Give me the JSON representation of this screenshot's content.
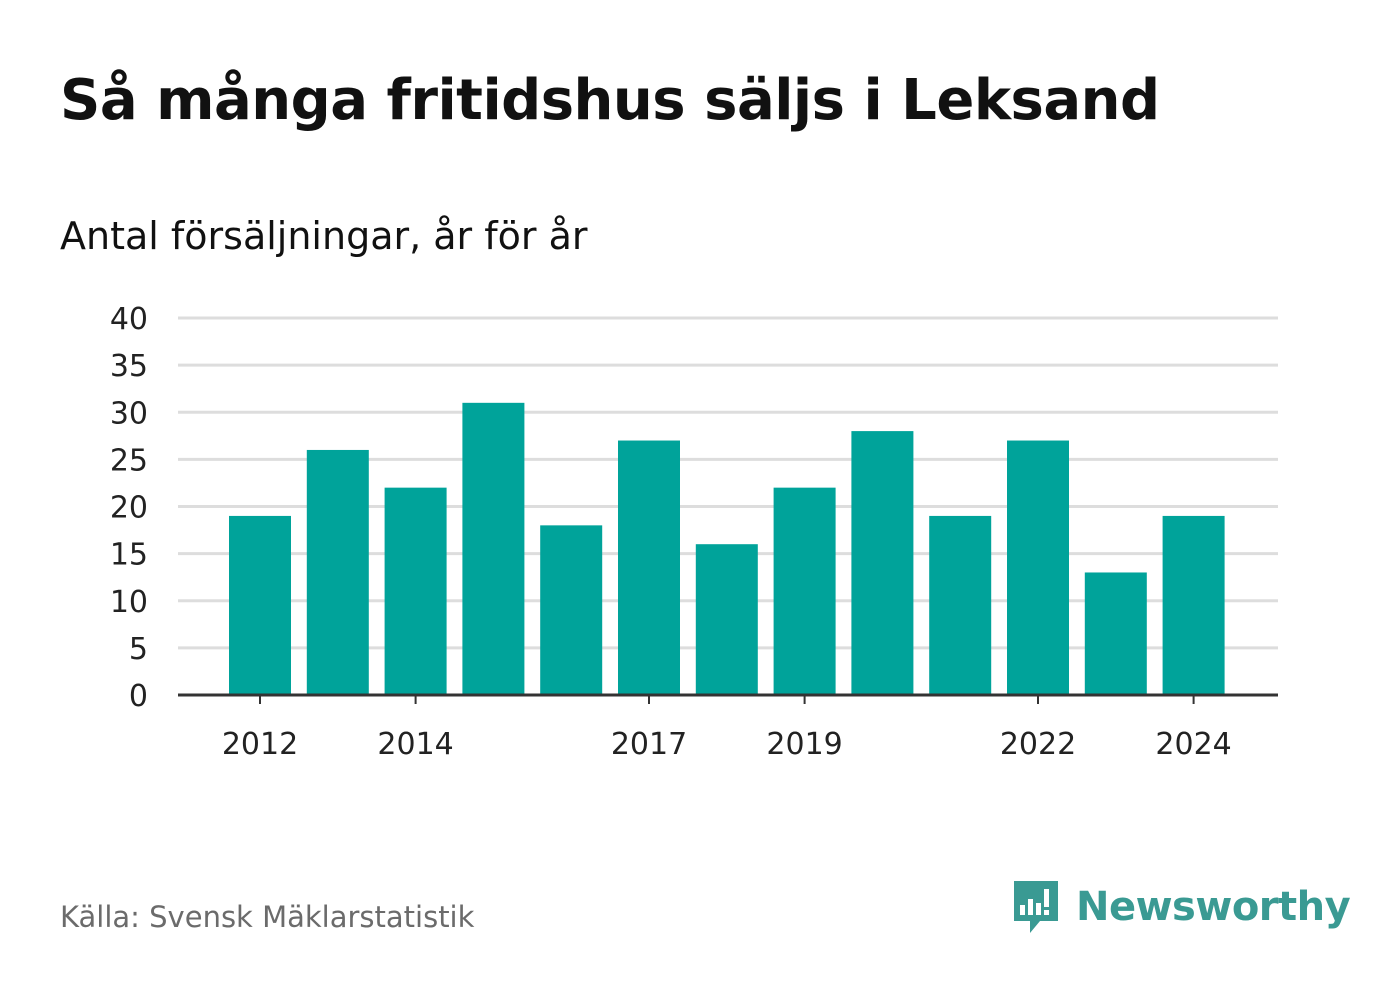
{
  "header": {
    "title": "Så många fritidshus säljs i Leksand",
    "subtitle": "Antal försäljningar, år för år"
  },
  "footer": {
    "source": "Källa: Svensk Mäklarstatistik",
    "brand": "Newsworthy"
  },
  "colors": {
    "bar": "#00a39a",
    "grid": "#dddddd",
    "axis": "#333333",
    "brand": "#3a9a93"
  },
  "chart_data": {
    "type": "bar",
    "title": "Så många fritidshus säljs i Leksand",
    "subtitle": "Antal försäljningar, år för år",
    "categories": [
      "2012",
      "2013",
      "2014",
      "2015",
      "2016",
      "2017",
      "2018",
      "2019",
      "2020",
      "2021",
      "2022",
      "2023",
      "2024"
    ],
    "values": [
      19,
      26,
      22,
      31,
      18,
      27,
      16,
      22,
      28,
      19,
      27,
      13,
      19
    ],
    "x_tick_labels": [
      "2012",
      "2014",
      "2017",
      "2019",
      "2022",
      "2024"
    ],
    "y_ticks": [
      0,
      5,
      10,
      15,
      20,
      25,
      30,
      35,
      40
    ],
    "ylim": [
      0,
      40
    ],
    "grid": true,
    "legend": "none",
    "xlabel": "",
    "ylabel": ""
  }
}
